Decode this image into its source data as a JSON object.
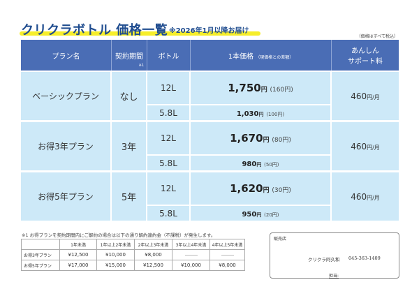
{
  "header": {
    "title": "クリクラボトル 価格一覧",
    "subtitle": "※2026年1月以降お届け",
    "tax_note": "（価格はすべて税込）",
    "accent_color": "#f6ee2a",
    "title_color": "#1f4c8f"
  },
  "table": {
    "columns": {
      "plan": "プラン名",
      "term": "契約期間",
      "term_note": "※1",
      "bottle": "ボトル",
      "price": "1本価格",
      "price_note": "（現価格との差額）",
      "support_line1": "あんしん",
      "support_line2": "サポート料"
    },
    "header_color": "#4a6db5",
    "cell_color": "#cde9f8",
    "yen": "円",
    "per_month": "/月",
    "plans": [
      {
        "name": "ベーシックプラン",
        "term": "なし",
        "support": "460",
        "bottles": [
          {
            "size": "12L",
            "price": "1,750",
            "diff": "(160円)"
          },
          {
            "size": "5.8L",
            "price": "1,030",
            "diff": "(100円)"
          }
        ]
      },
      {
        "name": "お得3年プラン",
        "term": "3年",
        "support": "460",
        "bottles": [
          {
            "size": "12L",
            "price": "1,670",
            "diff": "(80円)"
          },
          {
            "size": "5.8L",
            "price": "980",
            "diff": "(50円)"
          }
        ]
      },
      {
        "name": "お得5年プラン",
        "term": "5年",
        "support": "460",
        "bottles": [
          {
            "size": "12L",
            "price": "1,620",
            "diff": "(30円)"
          },
          {
            "size": "5.8L",
            "price": "950",
            "diff": "(20円)"
          }
        ]
      }
    ]
  },
  "cancellation": {
    "note": "※1 お得プランを契約期間内にご解約の場合は以下の通り解約違約金（不課税）が発生します。",
    "headers": [
      "",
      "1年未満",
      "1年以上2年未満",
      "2年以上3年未満",
      "3年以上4年未満",
      "4年以上5年未満"
    ],
    "rows": [
      {
        "plan": "お得3年プラン",
        "values": [
          "¥12,500",
          "¥10,000",
          "¥8,000",
          "",
          ""
        ]
      },
      {
        "plan": "お得5年プラン",
        "values": [
          "¥17,000",
          "¥15,000",
          "¥12,500",
          "¥10,000",
          "¥8,000"
        ]
      }
    ]
  },
  "shop": {
    "label": "販売店",
    "name": "クリクラ阿久和",
    "tel": "045-363-1409",
    "staff_label": "担当:"
  }
}
